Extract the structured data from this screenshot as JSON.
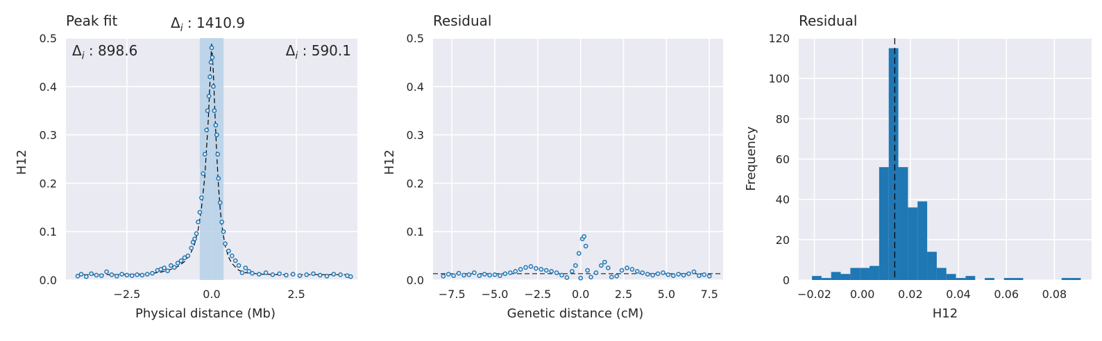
{
  "colors": {
    "axes_bg": "#eaeaf2",
    "grid": "#ffffff",
    "series": "#1f77b4",
    "span": "#b6d0e6",
    "fit_line": "#000000",
    "text": "#262626"
  },
  "chart_data": [
    {
      "type": "scatter",
      "title": "Peak fit",
      "xlabel": "Physical distance (Mb)",
      "ylabel": "H12",
      "xlim": [
        -4.3,
        4.3
      ],
      "ylim": [
        0,
        0.5
      ],
      "xticks": [
        -2.5,
        0.0,
        2.5
      ],
      "xtick_labels": [
        "−2.5",
        "0.0",
        "2.5"
      ],
      "yticks": [
        0.0,
        0.1,
        0.2,
        0.3,
        0.4,
        0.5
      ],
      "ytick_labels": [
        "0.0",
        "0.1",
        "0.2",
        "0.3",
        "0.4",
        "0.5"
      ],
      "grid": true,
      "span": {
        "x0": -0.35,
        "x1": 0.35
      },
      "annotations": {
        "left": {
          "prefix": "Δ",
          "sub": "i",
          "value": " : 898.6"
        },
        "center": {
          "prefix": "Δ",
          "sub": "i",
          "value": " : 1410.9"
        },
        "right": {
          "prefix": "Δ",
          "sub": "i",
          "value": " : 590.1"
        }
      },
      "fit_curve": {
        "x": [
          -4.0,
          -3.0,
          -2.0,
          -1.5,
          -1.2,
          -1.0,
          -0.8,
          -0.6,
          -0.5,
          -0.4,
          -0.3,
          -0.2,
          -0.1,
          -0.05,
          0.0,
          0.05,
          0.1,
          0.15,
          0.2,
          0.25,
          0.3,
          0.4,
          0.5,
          0.6,
          0.8,
          1.0,
          1.5,
          2.0,
          3.0,
          4.0
        ],
        "y": [
          0.011,
          0.011,
          0.012,
          0.016,
          0.022,
          0.028,
          0.038,
          0.058,
          0.075,
          0.104,
          0.148,
          0.215,
          0.33,
          0.41,
          0.49,
          0.43,
          0.34,
          0.26,
          0.195,
          0.148,
          0.112,
          0.07,
          0.047,
          0.034,
          0.02,
          0.015,
          0.012,
          0.011,
          0.011,
          0.011
        ]
      },
      "points": {
        "x": [
          -3.95,
          -3.85,
          -3.7,
          -3.55,
          -3.4,
          -3.25,
          -3.1,
          -2.95,
          -2.8,
          -2.65,
          -2.5,
          -2.35,
          -2.2,
          -2.05,
          -1.9,
          -1.75,
          -1.6,
          -1.5,
          -1.4,
          -1.3,
          -1.2,
          -1.1,
          -1.0,
          -0.9,
          -0.8,
          -0.7,
          -0.6,
          -0.55,
          -0.5,
          -0.45,
          -0.4,
          -0.35,
          -0.3,
          -0.25,
          -0.2,
          -0.15,
          -0.12,
          -0.08,
          -0.05,
          -0.02,
          0.0,
          0.02,
          0.05,
          0.08,
          0.12,
          0.15,
          0.18,
          0.2,
          0.25,
          0.3,
          0.35,
          0.4,
          0.5,
          0.6,
          0.7,
          0.8,
          0.9,
          1.0,
          1.1,
          1.2,
          1.4,
          1.6,
          1.8,
          2.0,
          2.2,
          2.4,
          2.6,
          2.8,
          3.0,
          3.2,
          3.4,
          3.6,
          3.8,
          4.0,
          4.1
        ],
        "y": [
          0.008,
          0.012,
          0.007,
          0.013,
          0.01,
          0.009,
          0.017,
          0.011,
          0.008,
          0.012,
          0.01,
          0.009,
          0.011,
          0.01,
          0.012,
          0.014,
          0.02,
          0.022,
          0.025,
          0.019,
          0.03,
          0.026,
          0.035,
          0.04,
          0.046,
          0.05,
          0.066,
          0.078,
          0.085,
          0.096,
          0.12,
          0.14,
          0.17,
          0.22,
          0.26,
          0.31,
          0.35,
          0.38,
          0.42,
          0.45,
          0.48,
          0.46,
          0.4,
          0.35,
          0.32,
          0.3,
          0.26,
          0.21,
          0.16,
          0.12,
          0.1,
          0.075,
          0.06,
          0.05,
          0.04,
          0.03,
          0.015,
          0.025,
          0.018,
          0.014,
          0.012,
          0.015,
          0.011,
          0.013,
          0.01,
          0.012,
          0.009,
          0.011,
          0.013,
          0.01,
          0.008,
          0.012,
          0.011,
          0.009,
          0.007
        ]
      }
    },
    {
      "type": "scatter",
      "title": "Residual",
      "xlabel": "Genetic distance (cM)",
      "ylabel": "H12",
      "xlim": [
        -8.6,
        8.3
      ],
      "ylim": [
        0,
        0.5
      ],
      "xticks": [
        -7.5,
        -5.0,
        -2.5,
        0.0,
        2.5,
        5.0,
        7.5
      ],
      "xtick_labels": [
        "−7.5",
        "−5.0",
        "−2.5",
        "0.0",
        "2.5",
        "5.0",
        "7.5"
      ],
      "yticks": [
        0.0,
        0.1,
        0.2,
        0.3,
        0.4,
        0.5
      ],
      "ytick_labels": [
        "0.0",
        "0.1",
        "0.2",
        "0.3",
        "0.4",
        "0.5"
      ],
      "grid": true,
      "hline": 0.013,
      "points": {
        "x": [
          -8.0,
          -7.7,
          -7.4,
          -7.1,
          -6.8,
          -6.5,
          -6.2,
          -5.9,
          -5.6,
          -5.3,
          -5.0,
          -4.7,
          -4.4,
          -4.1,
          -3.8,
          -3.5,
          -3.2,
          -2.9,
          -2.6,
          -2.3,
          -2.0,
          -1.7,
          -1.4,
          -1.1,
          -0.8,
          -0.5,
          -0.3,
          -0.1,
          0.0,
          0.1,
          0.2,
          0.3,
          0.4,
          0.6,
          0.9,
          1.2,
          1.4,
          1.6,
          1.8,
          2.1,
          2.4,
          2.7,
          3.0,
          3.3,
          3.6,
          3.9,
          4.2,
          4.5,
          4.8,
          5.1,
          5.4,
          5.7,
          6.0,
          6.3,
          6.6,
          6.9,
          7.2,
          7.5
        ],
        "y": [
          0.008,
          0.012,
          0.009,
          0.014,
          0.01,
          0.011,
          0.015,
          0.009,
          0.012,
          0.01,
          0.011,
          0.009,
          0.013,
          0.015,
          0.018,
          0.022,
          0.026,
          0.028,
          0.024,
          0.022,
          0.02,
          0.018,
          0.015,
          0.01,
          0.005,
          0.018,
          0.03,
          0.055,
          0.004,
          0.085,
          0.09,
          0.07,
          0.02,
          0.006,
          0.015,
          0.03,
          0.037,
          0.025,
          0.006,
          0.008,
          0.02,
          0.025,
          0.022,
          0.018,
          0.015,
          0.012,
          0.01,
          0.013,
          0.015,
          0.011,
          0.009,
          0.012,
          0.01,
          0.013,
          0.017,
          0.009,
          0.011,
          0.008
        ]
      }
    },
    {
      "type": "bar",
      "title": "Residual",
      "xlabel": "H12",
      "ylabel": "Frequency",
      "xlim": [
        -0.0265,
        0.0955
      ],
      "ylim": [
        0,
        120
      ],
      "xticks": [
        -0.02,
        0.0,
        0.02,
        0.04,
        0.06,
        0.08
      ],
      "xtick_labels": [
        "−0.02",
        "0.00",
        "0.02",
        "0.04",
        "0.06",
        "0.08"
      ],
      "yticks": [
        0,
        20,
        40,
        60,
        80,
        100,
        120
      ],
      "ytick_labels": [
        "0",
        "20",
        "40",
        "60",
        "80",
        "100",
        "120"
      ],
      "grid": true,
      "vline": 0.0135,
      "bin_width": 0.004,
      "bin_starts": [
        -0.021,
        -0.017,
        -0.013,
        -0.009,
        -0.005,
        -0.001,
        0.003,
        0.007,
        0.011,
        0.015,
        0.019,
        0.023,
        0.027,
        0.031,
        0.035,
        0.039,
        0.043,
        0.047,
        0.051,
        0.055,
        0.059,
        0.063,
        0.067,
        0.071,
        0.075,
        0.079,
        0.083,
        0.087
      ],
      "values": [
        2,
        1,
        4,
        3,
        6,
        6,
        7,
        56,
        115,
        56,
        36,
        39,
        14,
        6,
        3,
        1,
        2,
        0,
        1,
        0,
        1,
        1,
        0,
        0,
        0,
        0,
        1,
        1
      ]
    }
  ]
}
